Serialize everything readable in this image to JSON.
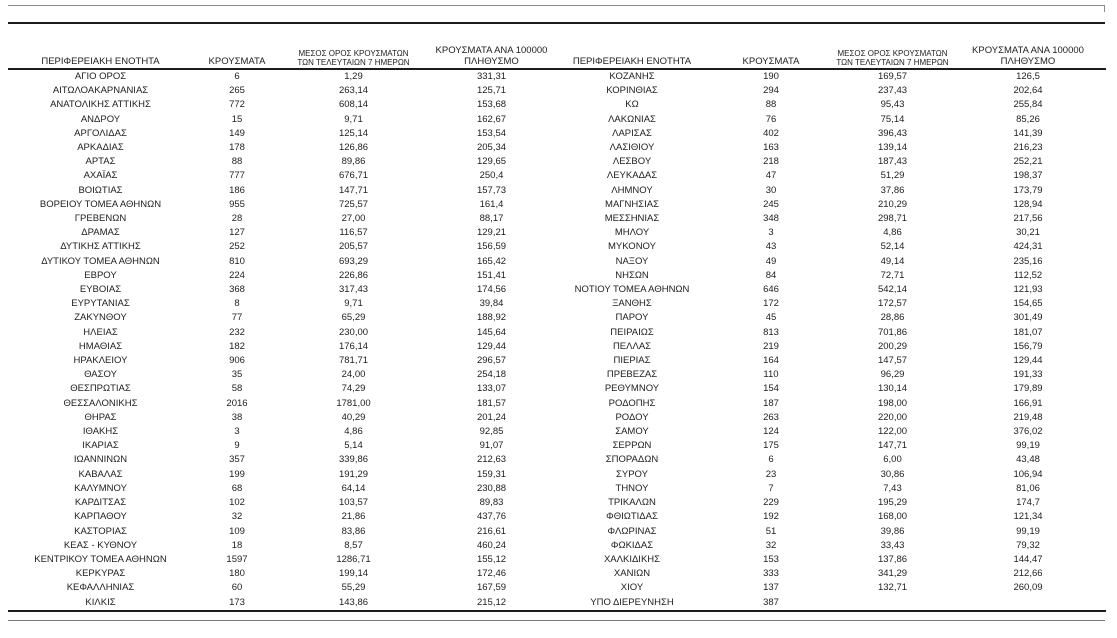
{
  "table": {
    "headers": {
      "region": "ΠΕΡΙΦΕΡΕΙΑΚΗ ΕΝΟΤΗΤΑ",
      "cases": "ΚΡΟΥΣΜΑΤΑ",
      "avg7_line1": "ΜΕΣΟΣ ΟΡΟΣ ΚΡΟΥΣΜΑΤΩΝ",
      "avg7_line2": "ΤΩΝ ΤΕΛΕΥΤΑΙΩΝ 7 ΗΜΕΡΩΝ",
      "per100k_line1": "ΚΡΟΥΣΜΑΤΑ ΑΝΑ 100000",
      "per100k_line2": "ΠΛΗΘΥΣΜΟ"
    },
    "left_rows": [
      [
        "ΑΓΙΟ ΟΡΟΣ",
        "6",
        "1,29",
        "331,31"
      ],
      [
        "ΑΙΤΩΛΟΑΚΑΡΝΑΝΙΑΣ",
        "265",
        "263,14",
        "125,71"
      ],
      [
        "ΑΝΑΤΟΛΙΚΗΣ ΑΤΤΙΚΗΣ",
        "772",
        "608,14",
        "153,68"
      ],
      [
        "ΑΝΔΡΟΥ",
        "15",
        "9,71",
        "162,67"
      ],
      [
        "ΑΡΓΟΛΙΔΑΣ",
        "149",
        "125,14",
        "153,54"
      ],
      [
        "ΑΡΚΑΔΙΑΣ",
        "178",
        "126,86",
        "205,34"
      ],
      [
        "ΑΡΤΑΣ",
        "88",
        "89,86",
        "129,65"
      ],
      [
        "ΑΧΑΪΑΣ",
        "777",
        "676,71",
        "250,4"
      ],
      [
        "ΒΟΙΩΤΙΑΣ",
        "186",
        "147,71",
        "157,73"
      ],
      [
        "ΒΟΡΕΙΟΥ ΤΟΜΕΑ ΑΘΗΝΩΝ",
        "955",
        "725,57",
        "161,4"
      ],
      [
        "ΓΡΕΒΕΝΩΝ",
        "28",
        "27,00",
        "88,17"
      ],
      [
        "ΔΡΑΜΑΣ",
        "127",
        "116,57",
        "129,21"
      ],
      [
        "ΔΥΤΙΚΗΣ ΑΤΤΙΚΗΣ",
        "252",
        "205,57",
        "156,59"
      ],
      [
        "ΔΥΤΙΚΟΥ ΤΟΜΕΑ ΑΘΗΝΩΝ",
        "810",
        "693,29",
        "165,42"
      ],
      [
        "ΕΒΡΟΥ",
        "224",
        "226,86",
        "151,41"
      ],
      [
        "ΕΥΒΟΙΑΣ",
        "368",
        "317,43",
        "174,56"
      ],
      [
        "ΕΥΡΥΤΑΝΙΑΣ",
        "8",
        "9,71",
        "39,84"
      ],
      [
        "ΖΑΚΥΝΘΟΥ",
        "77",
        "65,29",
        "188,92"
      ],
      [
        "ΗΛΕΙΑΣ",
        "232",
        "230,00",
        "145,64"
      ],
      [
        "ΗΜΑΘΙΑΣ",
        "182",
        "176,14",
        "129,44"
      ],
      [
        "ΗΡΑΚΛΕΙΟΥ",
        "906",
        "781,71",
        "296,57"
      ],
      [
        "ΘΑΣΟΥ",
        "35",
        "24,00",
        "254,18"
      ],
      [
        "ΘΕΣΠΡΩΤΙΑΣ",
        "58",
        "74,29",
        "133,07"
      ],
      [
        "ΘΕΣΣΑΛΟΝΙΚΗΣ",
        "2016",
        "1781,00",
        "181,57"
      ],
      [
        "ΘΗΡΑΣ",
        "38",
        "40,29",
        "201,24"
      ],
      [
        "ΙΘΑΚΗΣ",
        "3",
        "4,86",
        "92,85"
      ],
      [
        "ΙΚΑΡΙΑΣ",
        "9",
        "5,14",
        "91,07"
      ],
      [
        "ΙΩΑΝΝΙΝΩΝ",
        "357",
        "339,86",
        "212,63"
      ],
      [
        "ΚΑΒΑΛΑΣ",
        "199",
        "191,29",
        "159,31"
      ],
      [
        "ΚΑΛΥΜΝΟΥ",
        "68",
        "64,14",
        "230,88"
      ],
      [
        "ΚΑΡΔΙΤΣΑΣ",
        "102",
        "103,57",
        "89,83"
      ],
      [
        "ΚΑΡΠΑΘΟΥ",
        "32",
        "21,86",
        "437,76"
      ],
      [
        "ΚΑΣΤΟΡΙΑΣ",
        "109",
        "83,86",
        "216,61"
      ],
      [
        "ΚΕΑΣ - ΚΥΘΝΟΥ",
        "18",
        "8,57",
        "460,24"
      ],
      [
        "ΚΕΝΤΡΙΚΟΥ ΤΟΜΕΑ ΑΘΗΝΩΝ",
        "1597",
        "1286,71",
        "155,12"
      ],
      [
        "ΚΕΡΚΥΡΑΣ",
        "180",
        "199,14",
        "172,46"
      ],
      [
        "ΚΕΦΑΛΛΗΝΙΑΣ",
        "60",
        "55,29",
        "167,59"
      ],
      [
        "ΚΙΛΚΙΣ",
        "173",
        "143,86",
        "215,12"
      ]
    ],
    "right_rows": [
      [
        "ΚΟΖΑΝΗΣ",
        "190",
        "169,57",
        "126,5"
      ],
      [
        "ΚΟΡΙΝΘΙΑΣ",
        "294",
        "237,43",
        "202,64"
      ],
      [
        "ΚΩ",
        "88",
        "95,43",
        "255,84"
      ],
      [
        "ΛΑΚΩΝΙΑΣ",
        "76",
        "75,14",
        "85,26"
      ],
      [
        "ΛΑΡΙΣΑΣ",
        "402",
        "396,43",
        "141,39"
      ],
      [
        "ΛΑΣΙΘΙΟΥ",
        "163",
        "139,14",
        "216,23"
      ],
      [
        "ΛΕΣΒΟΥ",
        "218",
        "187,43",
        "252,21"
      ],
      [
        "ΛΕΥΚΑΔΑΣ",
        "47",
        "51,29",
        "198,37"
      ],
      [
        "ΛΗΜΝΟΥ",
        "30",
        "37,86",
        "173,79"
      ],
      [
        "ΜΑΓΝΗΣΙΑΣ",
        "245",
        "210,29",
        "128,94"
      ],
      [
        "ΜΕΣΣΗΝΙΑΣ",
        "348",
        "298,71",
        "217,56"
      ],
      [
        "ΜΗΛΟΥ",
        "3",
        "4,86",
        "30,21"
      ],
      [
        "ΜΥΚΟΝΟΥ",
        "43",
        "52,14",
        "424,31"
      ],
      [
        "ΝΑΞΟΥ",
        "49",
        "49,14",
        "235,16"
      ],
      [
        "ΝΗΣΩΝ",
        "84",
        "72,71",
        "112,52"
      ],
      [
        "ΝΟΤΙΟΥ ΤΟΜΕΑ ΑΘΗΝΩΝ",
        "646",
        "542,14",
        "121,93"
      ],
      [
        "ΞΑΝΘΗΣ",
        "172",
        "172,57",
        "154,65"
      ],
      [
        "ΠΑΡΟΥ",
        "45",
        "28,86",
        "301,49"
      ],
      [
        "ΠΕΙΡΑΙΩΣ",
        "813",
        "701,86",
        "181,07"
      ],
      [
        "ΠΕΛΛΑΣ",
        "219",
        "200,29",
        "156,79"
      ],
      [
        "ΠΙΕΡΙΑΣ",
        "164",
        "147,57",
        "129,44"
      ],
      [
        "ΠΡΕΒΕΖΑΣ",
        "110",
        "96,29",
        "191,33"
      ],
      [
        "ΡΕΘΥΜΝΟΥ",
        "154",
        "130,14",
        "179,89"
      ],
      [
        "ΡΟΔΟΠΗΣ",
        "187",
        "198,00",
        "166,91"
      ],
      [
        "ΡΟΔΟΥ",
        "263",
        "220,00",
        "219,48"
      ],
      [
        "ΣΑΜΟΥ",
        "124",
        "122,00",
        "376,02"
      ],
      [
        "ΣΕΡΡΩΝ",
        "175",
        "147,71",
        "99,19"
      ],
      [
        "ΣΠΟΡΑΔΩΝ",
        "6",
        "6,00",
        "43,48"
      ],
      [
        "ΣΥΡΟΥ",
        "23",
        "30,86",
        "106,94"
      ],
      [
        "ΤΗΝΟΥ",
        "7",
        "7,43",
        "81,06"
      ],
      [
        "ΤΡΙΚΑΛΩΝ",
        "229",
        "195,29",
        "174,7"
      ],
      [
        "ΦΘΙΩΤΙΔΑΣ",
        "192",
        "168,00",
        "121,34"
      ],
      [
        "ΦΛΩΡΙΝΑΣ",
        "51",
        "39,86",
        "99,19"
      ],
      [
        "ΦΩΚΙΔΑΣ",
        "32",
        "33,43",
        "79,32"
      ],
      [
        "ΧΑΛΚΙΔΙΚΗΣ",
        "153",
        "137,86",
        "144,47"
      ],
      [
        "ΧΑΝΙΩΝ",
        "333",
        "341,29",
        "212,66"
      ],
      [
        "ΧΙΟΥ",
        "137",
        "132,71",
        "260,09"
      ],
      [
        "ΥΠΟ ΔΙΕΡΕΥΝΗΣΗ",
        "387",
        "",
        ""
      ]
    ]
  },
  "colors": {
    "text": "#1d1d1d",
    "rule_dark": "#1b1b1b",
    "rule_light": "#8a8a8a",
    "background": "#ffffff"
  }
}
